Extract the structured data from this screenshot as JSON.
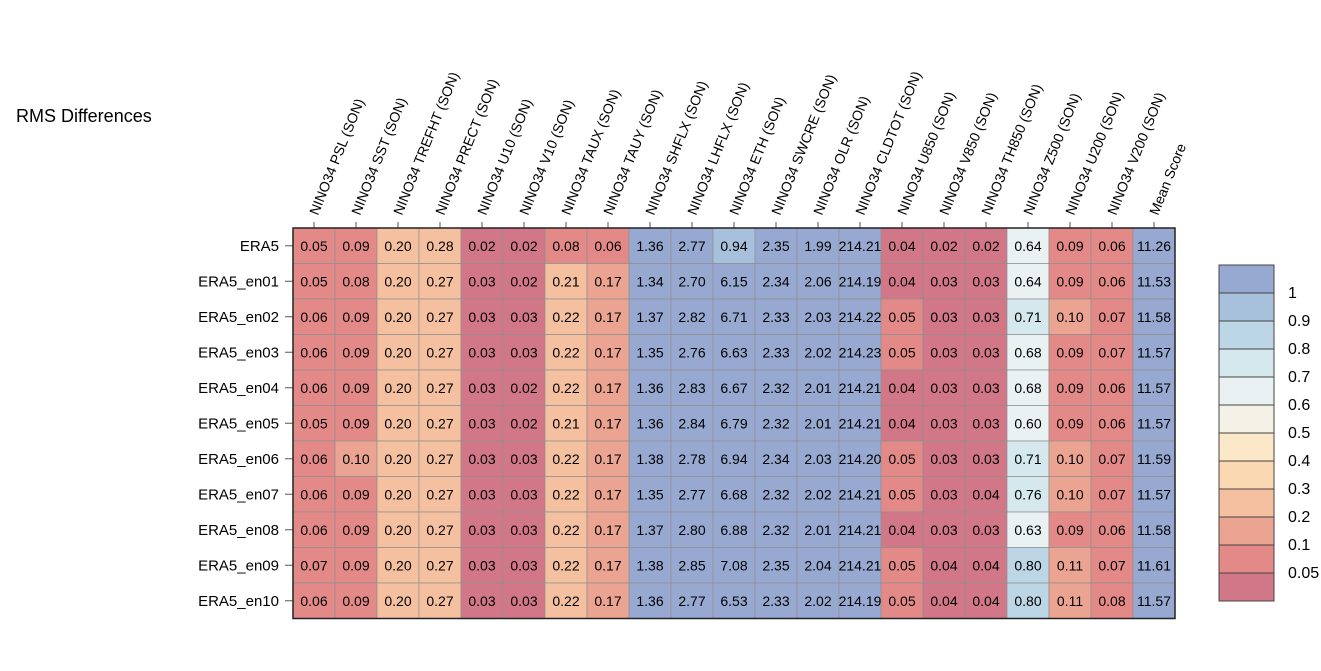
{
  "chart_data": {
    "type": "heatmap",
    "title": "RMS Differences",
    "columns": [
      "NINO34 PSL (SON)",
      "NINO34 SST (SON)",
      "NINO34 TREFHT (SON)",
      "NINO34 PRECT (SON)",
      "NINO34 U10 (SON)",
      "NINO34 V10 (SON)",
      "NINO34 TAUX (SON)",
      "NINO34 TAUY (SON)",
      "NINO34 SHFLX (SON)",
      "NINO34 LHFLX (SON)",
      "NINO34 ETH (SON)",
      "NINO34 SWCRE (SON)",
      "NINO34 OLR (SON)",
      "NINO34 CLDTOT (SON)",
      "NINO34 U850 (SON)",
      "NINO34 V850 (SON)",
      "NINO34 TH850 (SON)",
      "NINO34 Z500 (SON)",
      "NINO34 U200 (SON)",
      "NINO34 V200 (SON)",
      "Mean Score"
    ],
    "rows": [
      "ERA5",
      "ERA5_en01",
      "ERA5_en02",
      "ERA5_en03",
      "ERA5_en04",
      "ERA5_en05",
      "ERA5_en06",
      "ERA5_en07",
      "ERA5_en08",
      "ERA5_en09",
      "ERA5_en10"
    ],
    "values": [
      [
        "0.05",
        "0.09",
        "0.20",
        "0.28",
        "0.02",
        "0.02",
        "0.08",
        "0.06",
        "1.36",
        "2.77",
        "0.94",
        "2.35",
        "1.99",
        "214.21",
        "0.04",
        "0.02",
        "0.02",
        "0.64",
        "0.09",
        "0.06",
        "11.26"
      ],
      [
        "0.05",
        "0.08",
        "0.20",
        "0.27",
        "0.03",
        "0.02",
        "0.21",
        "0.17",
        "1.34",
        "2.70",
        "6.15",
        "2.34",
        "2.06",
        "214.19",
        "0.04",
        "0.03",
        "0.03",
        "0.64",
        "0.09",
        "0.06",
        "11.53"
      ],
      [
        "0.06",
        "0.09",
        "0.20",
        "0.27",
        "0.03",
        "0.03",
        "0.22",
        "0.17",
        "1.37",
        "2.82",
        "6.71",
        "2.33",
        "2.03",
        "214.22",
        "0.05",
        "0.03",
        "0.03",
        "0.71",
        "0.10",
        "0.07",
        "11.58"
      ],
      [
        "0.06",
        "0.09",
        "0.20",
        "0.27",
        "0.03",
        "0.03",
        "0.22",
        "0.17",
        "1.35",
        "2.76",
        "6.63",
        "2.33",
        "2.02",
        "214.23",
        "0.05",
        "0.03",
        "0.03",
        "0.68",
        "0.09",
        "0.07",
        "11.57"
      ],
      [
        "0.06",
        "0.09",
        "0.20",
        "0.27",
        "0.03",
        "0.02",
        "0.22",
        "0.17",
        "1.36",
        "2.83",
        "6.67",
        "2.32",
        "2.01",
        "214.21",
        "0.04",
        "0.03",
        "0.03",
        "0.68",
        "0.09",
        "0.06",
        "11.57"
      ],
      [
        "0.05",
        "0.09",
        "0.20",
        "0.27",
        "0.03",
        "0.02",
        "0.21",
        "0.17",
        "1.36",
        "2.84",
        "6.79",
        "2.32",
        "2.01",
        "214.21",
        "0.04",
        "0.03",
        "0.03",
        "0.60",
        "0.09",
        "0.06",
        "11.57"
      ],
      [
        "0.06",
        "0.10",
        "0.20",
        "0.27",
        "0.03",
        "0.03",
        "0.22",
        "0.17",
        "1.38",
        "2.78",
        "6.94",
        "2.34",
        "2.03",
        "214.20",
        "0.05",
        "0.03",
        "0.03",
        "0.71",
        "0.10",
        "0.07",
        "11.59"
      ],
      [
        "0.06",
        "0.09",
        "0.20",
        "0.27",
        "0.03",
        "0.03",
        "0.22",
        "0.17",
        "1.35",
        "2.77",
        "6.68",
        "2.32",
        "2.02",
        "214.21",
        "0.05",
        "0.03",
        "0.04",
        "0.76",
        "0.10",
        "0.07",
        "11.57"
      ],
      [
        "0.06",
        "0.09",
        "0.20",
        "0.27",
        "0.03",
        "0.03",
        "0.22",
        "0.17",
        "1.37",
        "2.80",
        "6.88",
        "2.32",
        "2.01",
        "214.21",
        "0.04",
        "0.03",
        "0.03",
        "0.63",
        "0.09",
        "0.06",
        "11.58"
      ],
      [
        "0.07",
        "0.09",
        "0.20",
        "0.27",
        "0.03",
        "0.03",
        "0.22",
        "0.17",
        "1.38",
        "2.85",
        "7.08",
        "2.35",
        "2.04",
        "214.21",
        "0.05",
        "0.04",
        "0.04",
        "0.80",
        "0.11",
        "0.07",
        "11.61"
      ],
      [
        "0.06",
        "0.09",
        "0.20",
        "0.27",
        "0.03",
        "0.03",
        "0.22",
        "0.17",
        "1.36",
        "2.77",
        "6.53",
        "2.33",
        "2.02",
        "214.19",
        "0.05",
        "0.04",
        "0.04",
        "0.80",
        "0.11",
        "0.08",
        "11.57"
      ]
    ],
    "colorbar": {
      "labels": [
        "1",
        "0.9",
        "0.8",
        "0.7",
        "0.6",
        "0.5",
        "0.4",
        "0.3",
        "0.2",
        "0.1",
        "0.05"
      ],
      "colors": [
        "#97a9d1",
        "#a7c1dc",
        "#bcd6e5",
        "#d4e8ee",
        "#e9f1f2",
        "#f4f1e6",
        "#fbe8c9",
        "#fad8b2",
        "#f5c0a0",
        "#eba392",
        "#e38a88",
        "#d27788"
      ]
    }
  }
}
